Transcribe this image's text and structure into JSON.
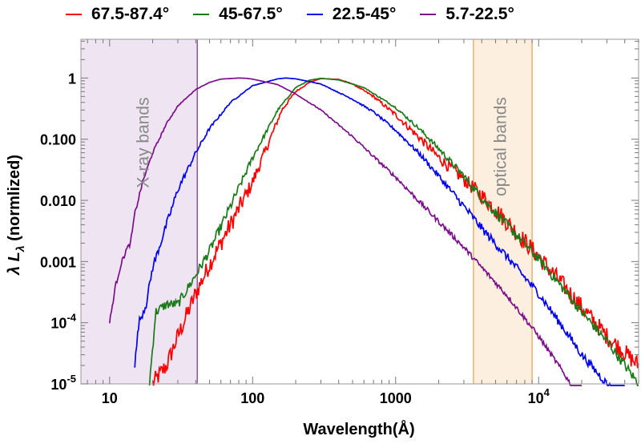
{
  "chart_data": {
    "type": "line",
    "xlabel": "Wavelength(Å)",
    "ylabel_main": "λ L",
    "ylabel_sub": "λ",
    "ylabel_tail": " (normlized)",
    "xscale": "log",
    "yscale": "log",
    "xlim": [
      6.3,
      50000
    ],
    "ylim": [
      1e-05,
      4.3
    ],
    "x_ticks": [
      {
        "value": 10,
        "label": "10"
      },
      {
        "value": 100,
        "label": "100"
      },
      {
        "value": 1000,
        "label": "1000"
      },
      {
        "value": 10000,
        "label": "10",
        "sup": "4"
      }
    ],
    "y_ticks": [
      {
        "value": 1,
        "label": "1"
      },
      {
        "value": 0.1,
        "label": "0.100"
      },
      {
        "value": 0.01,
        "label": "0.010"
      },
      {
        "value": 0.001,
        "label": "0.001"
      },
      {
        "value": 0.0001,
        "label": "10",
        "sup": "-4"
      },
      {
        "value": 1e-05,
        "label": "10",
        "sup": "-5"
      }
    ],
    "bands": [
      {
        "label": "X-ray bands",
        "x_range": [
          6.3,
          41
        ],
        "fill": "#efe4f1",
        "edge": "#7b2a8a"
      },
      {
        "label": "optical bands",
        "x_range": [
          3500,
          9000
        ],
        "fill": "#fdefdf",
        "edge": "#e3a04a"
      }
    ],
    "series": [
      {
        "name": "67.5-87.4°",
        "color": "#ff0000",
        "noise": 0.55,
        "x": [
          20,
          25,
          30,
          40,
          50,
          70,
          100,
          130,
          160,
          200,
          250,
          300,
          400,
          500,
          700,
          1000,
          1500,
          2000,
          3000,
          4000,
          5000,
          7000,
          10000,
          15000,
          20000,
          30000,
          50000
        ],
        "y": [
          1e-05,
          2e-05,
          6e-05,
          0.0003,
          0.0009,
          0.004,
          0.02,
          0.09,
          0.3,
          0.6,
          0.85,
          0.98,
          0.95,
          0.8,
          0.5,
          0.25,
          0.1,
          0.05,
          0.022,
          0.012,
          0.007,
          0.003,
          0.0012,
          0.0004,
          0.00018,
          6e-05,
          2e-05
        ]
      },
      {
        "name": "45-67.5°",
        "color": "#1a7a1a",
        "noise": 0.3,
        "x": [
          19,
          21,
          25,
          30,
          40,
          50,
          70,
          100,
          150,
          200,
          250,
          300,
          400,
          600,
          1000,
          1500,
          2000,
          3000,
          4000,
          6000,
          10000,
          15000,
          20000,
          30000,
          50000
        ],
        "y": [
          1e-05,
          0.00015,
          0.0002,
          0.0002,
          0.0006,
          0.0015,
          0.008,
          0.05,
          0.3,
          0.7,
          0.92,
          0.99,
          0.93,
          0.7,
          0.33,
          0.14,
          0.07,
          0.025,
          0.011,
          0.004,
          0.0011,
          0.00035,
          0.00015,
          5e-05,
          1e-05
        ]
      },
      {
        "name": "22.5-45°",
        "color": "#0000ee",
        "noise": 0.25,
        "x": [
          15,
          16,
          18,
          20,
          25,
          30,
          40,
          50,
          70,
          100,
          150,
          170,
          200,
          300,
          500,
          700,
          1000,
          1500,
          2000,
          3000,
          4000,
          6000,
          10000,
          15000,
          20000,
          30000,
          40000
        ],
        "y": [
          2e-05,
          0.0001,
          0.0002,
          0.0008,
          0.004,
          0.015,
          0.06,
          0.15,
          0.4,
          0.75,
          0.97,
          1.0,
          0.97,
          0.8,
          0.45,
          0.28,
          0.14,
          0.055,
          0.025,
          0.008,
          0.0035,
          0.0012,
          0.0003,
          8e-05,
          3e-05,
          1e-05,
          5e-06
        ]
      },
      {
        "name": "5.7-22.5°",
        "color": "#7b0f8a",
        "noise": 0.15,
        "x": [
          10,
          11,
          12,
          13,
          14,
          15,
          17,
          20,
          25,
          30,
          40,
          50,
          60,
          80,
          90,
          100,
          150,
          200,
          300,
          500,
          700,
          1000,
          1500,
          2000,
          3000,
          4000,
          6000,
          10000,
          15000,
          20000
        ],
        "y": [
          0.0001,
          0.0004,
          0.0009,
          0.0015,
          0.002,
          0.006,
          0.02,
          0.06,
          0.18,
          0.35,
          0.65,
          0.85,
          0.96,
          1.0,
          0.99,
          0.96,
          0.78,
          0.55,
          0.3,
          0.11,
          0.052,
          0.024,
          0.009,
          0.0045,
          0.0017,
          0.0008,
          0.00028,
          6e-05,
          1.5e-05,
          5e-06
        ]
      }
    ]
  }
}
